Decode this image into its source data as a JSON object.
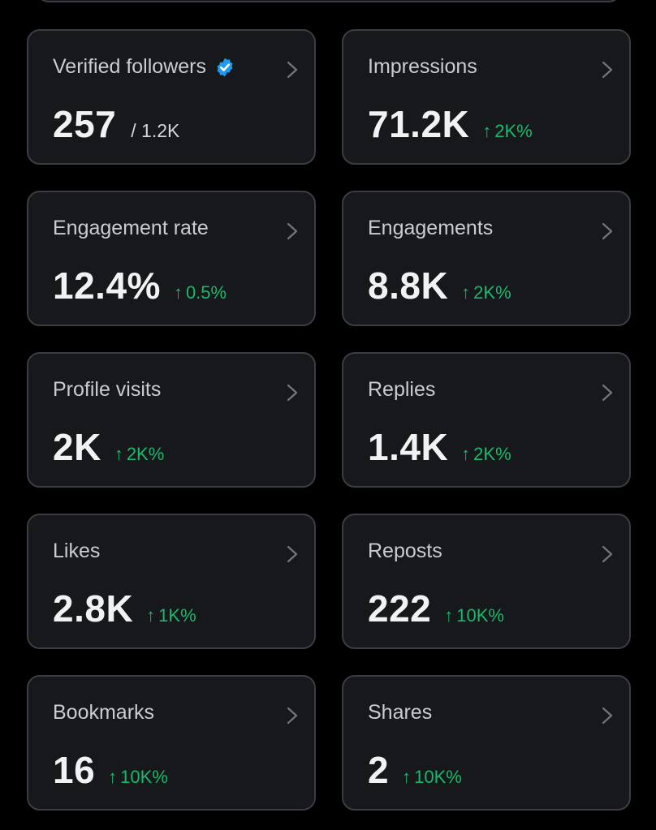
{
  "colors": {
    "background": "#000000",
    "card_background": "#16181c",
    "card_border": "#3a3d42",
    "title_text": "#c9ccd0",
    "value_text": "#f0f2f4",
    "positive_change": "#19b96b",
    "verified_badge": "#1d9bf0",
    "chevron": "#71767b"
  },
  "icons": {
    "chevron": "chevron-right-icon",
    "verified": "verified-badge-icon",
    "up_arrow": "arrow-up-icon",
    "up_arrow_glyph": "↑"
  },
  "metrics": {
    "verified_followers": {
      "title": "Verified followers",
      "value": "257",
      "denominator": "/ 1.2K"
    },
    "impressions": {
      "title": "Impressions",
      "value": "71.2K",
      "change": "2K%"
    },
    "engagement_rate": {
      "title": "Engagement rate",
      "value": "12.4%",
      "change": "0.5%"
    },
    "engagements": {
      "title": "Engagements",
      "value": "8.8K",
      "change": "2K%"
    },
    "profile_visits": {
      "title": "Profile visits",
      "value": "2K",
      "change": "2K%"
    },
    "replies": {
      "title": "Replies",
      "value": "1.4K",
      "change": "2K%"
    },
    "likes": {
      "title": "Likes",
      "value": "2.8K",
      "change": "1K%"
    },
    "reposts": {
      "title": "Reposts",
      "value": "222",
      "change": "10K%"
    },
    "bookmarks": {
      "title": "Bookmarks",
      "value": "16",
      "change": "10K%"
    },
    "shares": {
      "title": "Shares",
      "value": "2",
      "change": "10K%"
    }
  }
}
